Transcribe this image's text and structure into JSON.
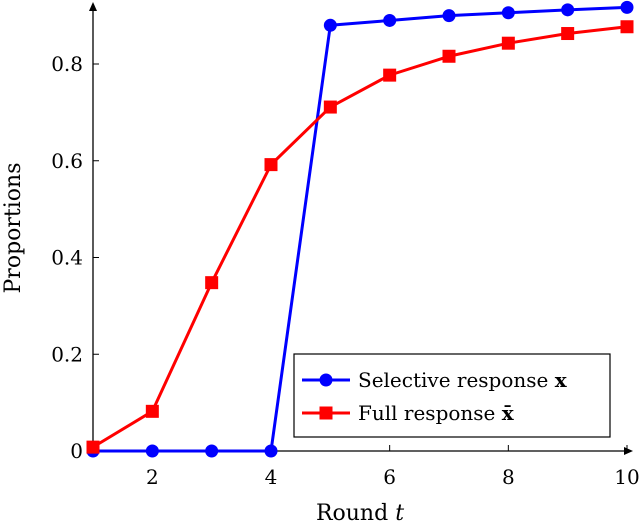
{
  "chart_data": {
    "type": "line",
    "xlabel_text": "Round ",
    "xlabel_var": "t",
    "ylabel": "Proportions",
    "xlim": [
      1,
      10
    ],
    "ylim": [
      0,
      0.92
    ],
    "xticks": [
      2,
      4,
      6,
      8,
      10
    ],
    "yticks": [
      0,
      0.2,
      0.4,
      0.6,
      0.8
    ],
    "ytick_labels": [
      "0",
      "0.2",
      "0.4",
      "0.6",
      "0.8"
    ],
    "legend_position": "bottom-right",
    "series": [
      {
        "name": "Selective response x",
        "label_text": "Selective response ",
        "label_math": "x",
        "marker": "circle",
        "color": "#0000ff",
        "x": [
          1,
          2,
          3,
          4,
          5,
          6,
          7,
          8,
          9,
          10
        ],
        "y": [
          0,
          0,
          0,
          0,
          0.88,
          0.89,
          0.9,
          0.906,
          0.912,
          0.917
        ]
      },
      {
        "name": "Full response x̄",
        "label_text": "Full response ",
        "label_math": "x̄",
        "marker": "square",
        "color": "#ff0000",
        "x": [
          1,
          2,
          3,
          4,
          5,
          6,
          7,
          8,
          9,
          10
        ],
        "y": [
          0.008,
          0.082,
          0.348,
          0.592,
          0.711,
          0.777,
          0.816,
          0.843,
          0.863,
          0.877
        ]
      }
    ]
  }
}
